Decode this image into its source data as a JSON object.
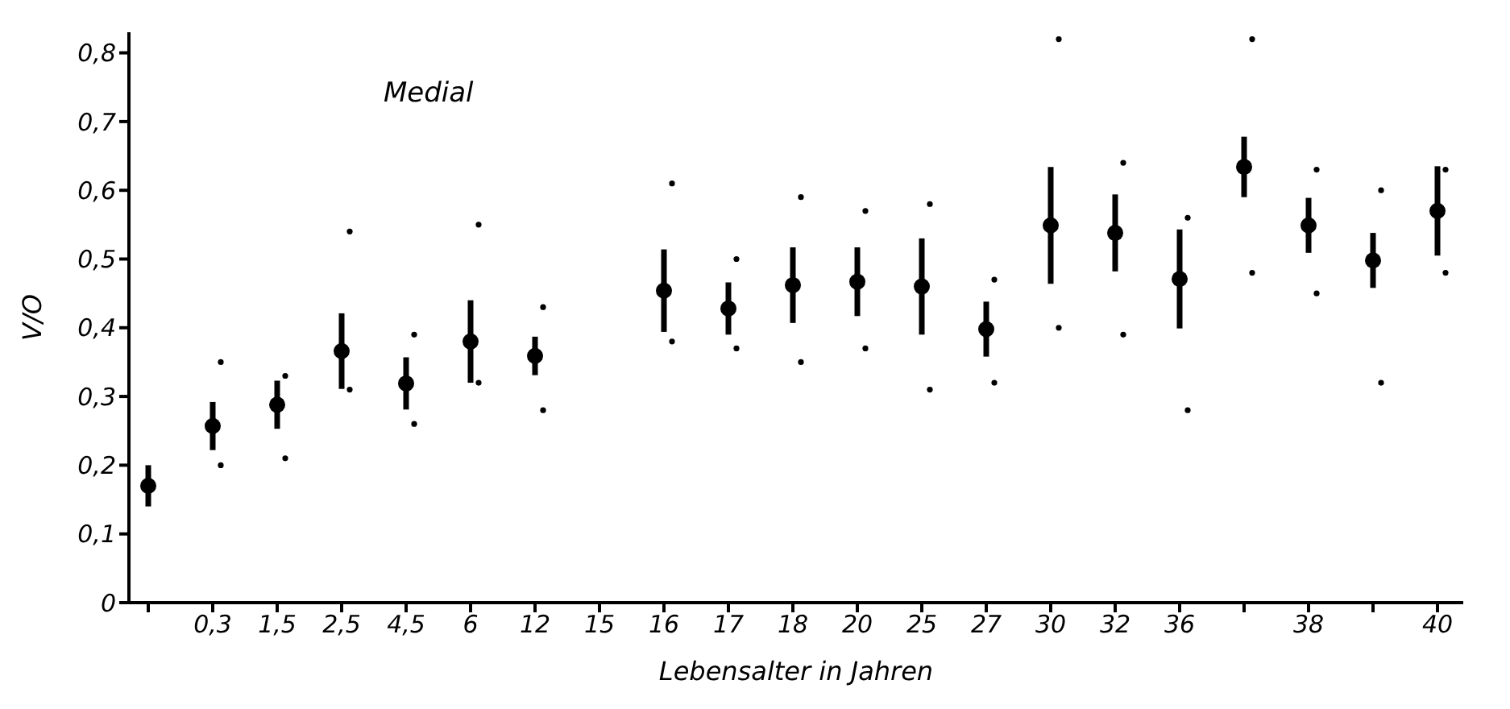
{
  "chart_data": {
    "type": "scatter",
    "xlabel": "Lebensalter in Jahren",
    "ylabel": "V/O",
    "annotations": [
      "Medial"
    ],
    "categories": [
      null,
      "0,3",
      "1,5",
      "2,5",
      "4,5",
      "6",
      "12",
      "15",
      "16",
      "17",
      "18",
      "20",
      "25",
      "27",
      "30",
      "32",
      "36",
      null,
      "38",
      null,
      "40"
    ],
    "series": [
      {
        "color": "#000000",
        "values": [
          0.17,
          0.257,
          0.288,
          0.366,
          0.319,
          0.38,
          0.359,
          null,
          0.454,
          0.428,
          0.462,
          0.467,
          0.46,
          0.398,
          0.549,
          0.538,
          0.471,
          0.634,
          0.549,
          0.498,
          0.57
        ],
        "errors": [
          0.03,
          0.035,
          0.035,
          0.055,
          0.038,
          0.06,
          0.028,
          null,
          0.06,
          0.038,
          0.055,
          0.05,
          0.07,
          0.04,
          0.085,
          0.056,
          0.072,
          0.044,
          0.04,
          0.04,
          0.065
        ]
      },
      {
        "color": "#000000",
        "values": [
          null,
          0.35,
          0.33,
          0.54,
          0.39,
          0.55,
          0.43,
          null,
          0.61,
          0.5,
          0.59,
          0.57,
          0.58,
          0.47,
          0.82,
          0.64,
          0.56,
          0.82,
          0.63,
          0.6,
          0.63
        ]
      },
      {
        "color": "#000000",
        "values": [
          null,
          0.2,
          0.21,
          0.31,
          0.26,
          0.32,
          0.28,
          null,
          0.38,
          0.37,
          0.35,
          0.37,
          0.31,
          0.32,
          0.4,
          0.39,
          0.28,
          0.48,
          0.45,
          0.32,
          0.48
        ]
      }
    ],
    "ylim": [
      0,
      0.83
    ],
    "yticks": [
      {
        "value": 0,
        "label": "0"
      },
      {
        "value": 0.1,
        "label": "0,1"
      },
      {
        "value": 0.2,
        "label": "0,2"
      },
      {
        "value": 0.3,
        "label": "0,3"
      },
      {
        "value": 0.4,
        "label": "0,4"
      },
      {
        "value": 0.5,
        "label": "0,5"
      },
      {
        "value": 0.6,
        "label": "0,6"
      },
      {
        "value": 0.7,
        "label": "0,7"
      },
      {
        "value": 0.8,
        "label": "0,8"
      }
    ],
    "marker": "circle"
  }
}
